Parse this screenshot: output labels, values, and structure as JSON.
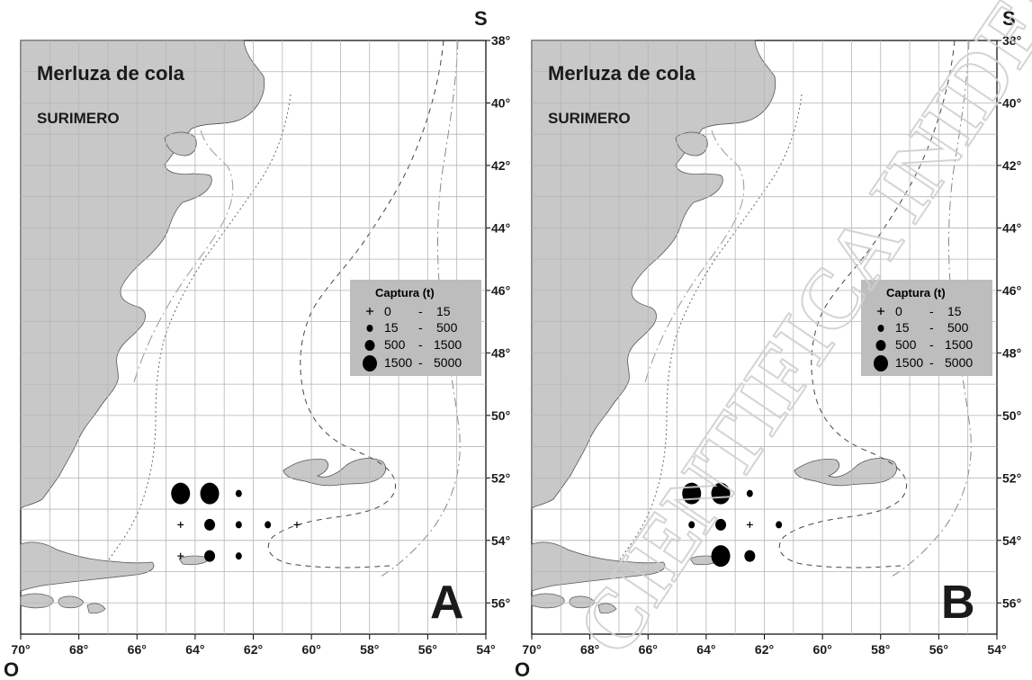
{
  "panels": [
    {
      "title": "Merluza de cola",
      "subtitle": "SURIMERO",
      "letter": "A",
      "points": [
        {
          "lon": -64.5,
          "lat": -52.5,
          "cls": 3
        },
        {
          "lon": -63.5,
          "lat": -52.5,
          "cls": 3
        },
        {
          "lon": -62.5,
          "lat": -52.5,
          "cls": 1
        },
        {
          "lon": -64.5,
          "lat": -53.5,
          "cls": 0
        },
        {
          "lon": -63.5,
          "lat": -53.5,
          "cls": 2
        },
        {
          "lon": -62.5,
          "lat": -53.5,
          "cls": 1
        },
        {
          "lon": -61.5,
          "lat": -53.5,
          "cls": 1
        },
        {
          "lon": -60.5,
          "lat": -53.5,
          "cls": 0
        },
        {
          "lon": -64.5,
          "lat": -54.5,
          "cls": 0
        },
        {
          "lon": -63.5,
          "lat": -54.5,
          "cls": 2
        },
        {
          "lon": -62.5,
          "lat": -54.5,
          "cls": 1
        }
      ]
    },
    {
      "title": "Merluza de cola",
      "subtitle": "SURIMERO",
      "letter": "B",
      "points": [
        {
          "lon": -64.5,
          "lat": -52.5,
          "cls": 3
        },
        {
          "lon": -63.5,
          "lat": -52.5,
          "cls": 3
        },
        {
          "lon": -62.5,
          "lat": -52.5,
          "cls": 1
        },
        {
          "lon": -64.5,
          "lat": -53.5,
          "cls": 1
        },
        {
          "lon": -63.5,
          "lat": -53.5,
          "cls": 2
        },
        {
          "lon": -62.5,
          "lat": -53.5,
          "cls": 0
        },
        {
          "lon": -61.5,
          "lat": -53.5,
          "cls": 1
        },
        {
          "lon": -63.5,
          "lat": -54.5,
          "cls": 3
        },
        {
          "lon": -62.5,
          "lat": -54.5,
          "cls": 2
        }
      ]
    }
  ],
  "legend": {
    "title": "Captura (t)",
    "classes": [
      {
        "low": "0",
        "sep": "-",
        "high": "15"
      },
      {
        "low": "15",
        "sep": "-",
        "high": "500"
      },
      {
        "low": "500",
        "sep": "-",
        "high": "1500"
      },
      {
        "low": "1500",
        "sep": "-",
        "high": "5000"
      }
    ]
  },
  "axes": {
    "x_ticks": [
      "70°",
      "68°",
      "66°",
      "64°",
      "62°",
      "60°",
      "58°",
      "56°",
      "54°"
    ],
    "y_ticks": [
      "38°",
      "40°",
      "42°",
      "44°",
      "46°",
      "48°",
      "50°",
      "52°",
      "54°",
      "56°"
    ],
    "lat_hemisphere_label": "S",
    "lon_hemisphere_label": "O",
    "lon_range": [
      -70,
      -54
    ],
    "lat_range": [
      -57,
      -38
    ]
  },
  "watermark": "CIENTIFICA INIDEP",
  "colors": {
    "land": "#c8c8c8",
    "legend_box": "#bdbdbd",
    "grid": "#b5b5b5",
    "symbols": "#000000"
  }
}
